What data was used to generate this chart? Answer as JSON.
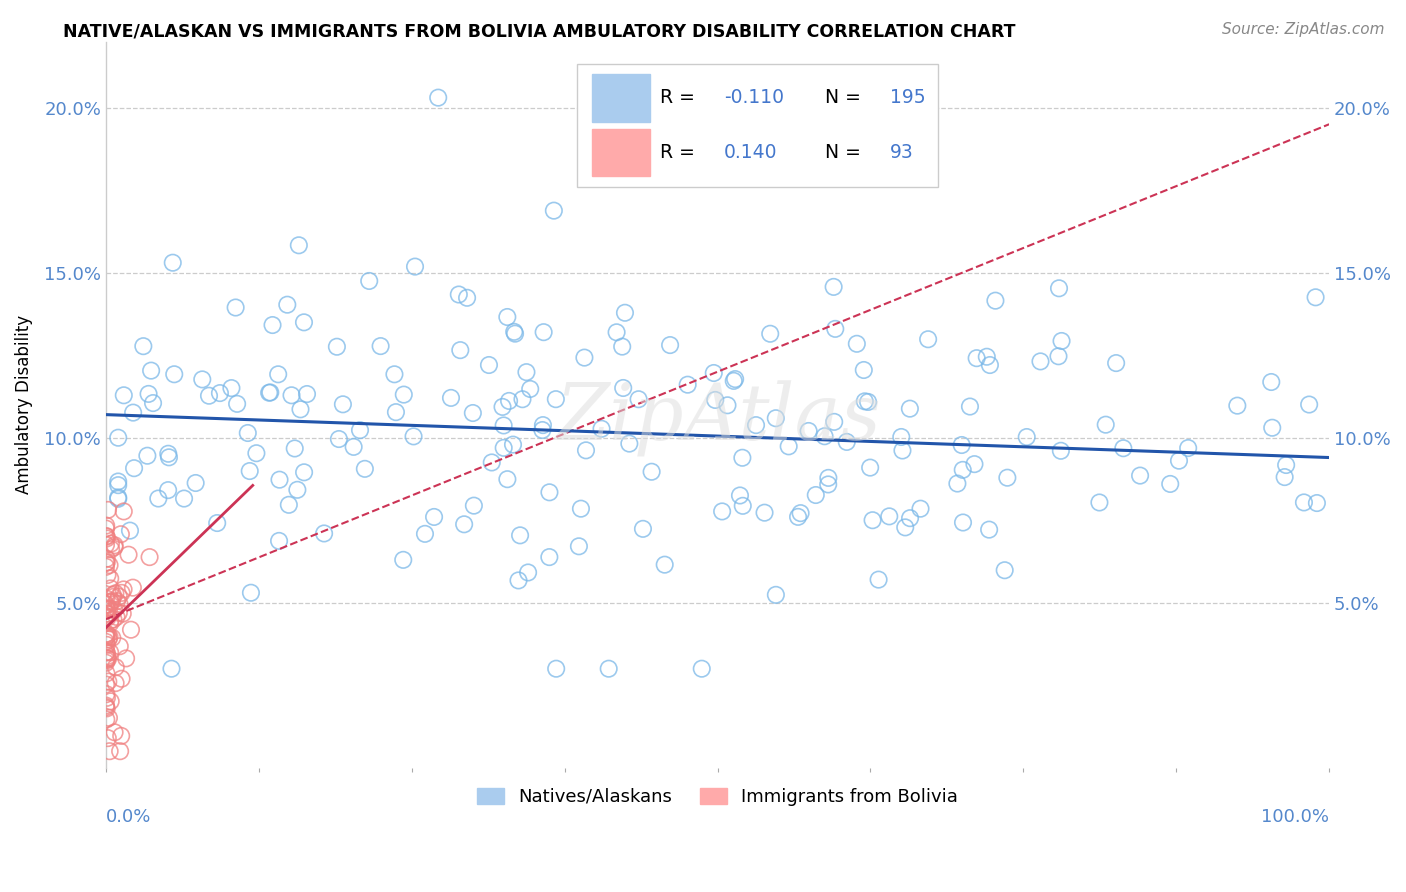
{
  "title": "NATIVE/ALASKAN VS IMMIGRANTS FROM BOLIVIA AMBULATORY DISABILITY CORRELATION CHART",
  "source": "Source: ZipAtlas.com",
  "ylabel": "Ambulatory Disability",
  "xlim": [
    0.0,
    1.0
  ],
  "ylim": [
    0.0,
    0.22
  ],
  "ytick_vals": [
    0.05,
    0.1,
    0.15,
    0.2
  ],
  "native_R": -0.11,
  "native_N": 195,
  "bolivia_R": 0.14,
  "bolivia_N": 93,
  "scatter_color_native": "#7bb8e8",
  "scatter_color_bolivia": "#f08080",
  "line_color_native": "#2255aa",
  "line_color_bolivia": "#cc3355",
  "dashed_line_color": "#cc3355",
  "tick_color": "#5588cc",
  "watermark": "ZipAtlas",
  "background_color": "#ffffff",
  "grid_color": "#cccccc",
  "legend_r_n_color": "#4477cc",
  "legend_box_color_native": "#aaccee",
  "legend_box_color_bolivia": "#ffaaaa"
}
